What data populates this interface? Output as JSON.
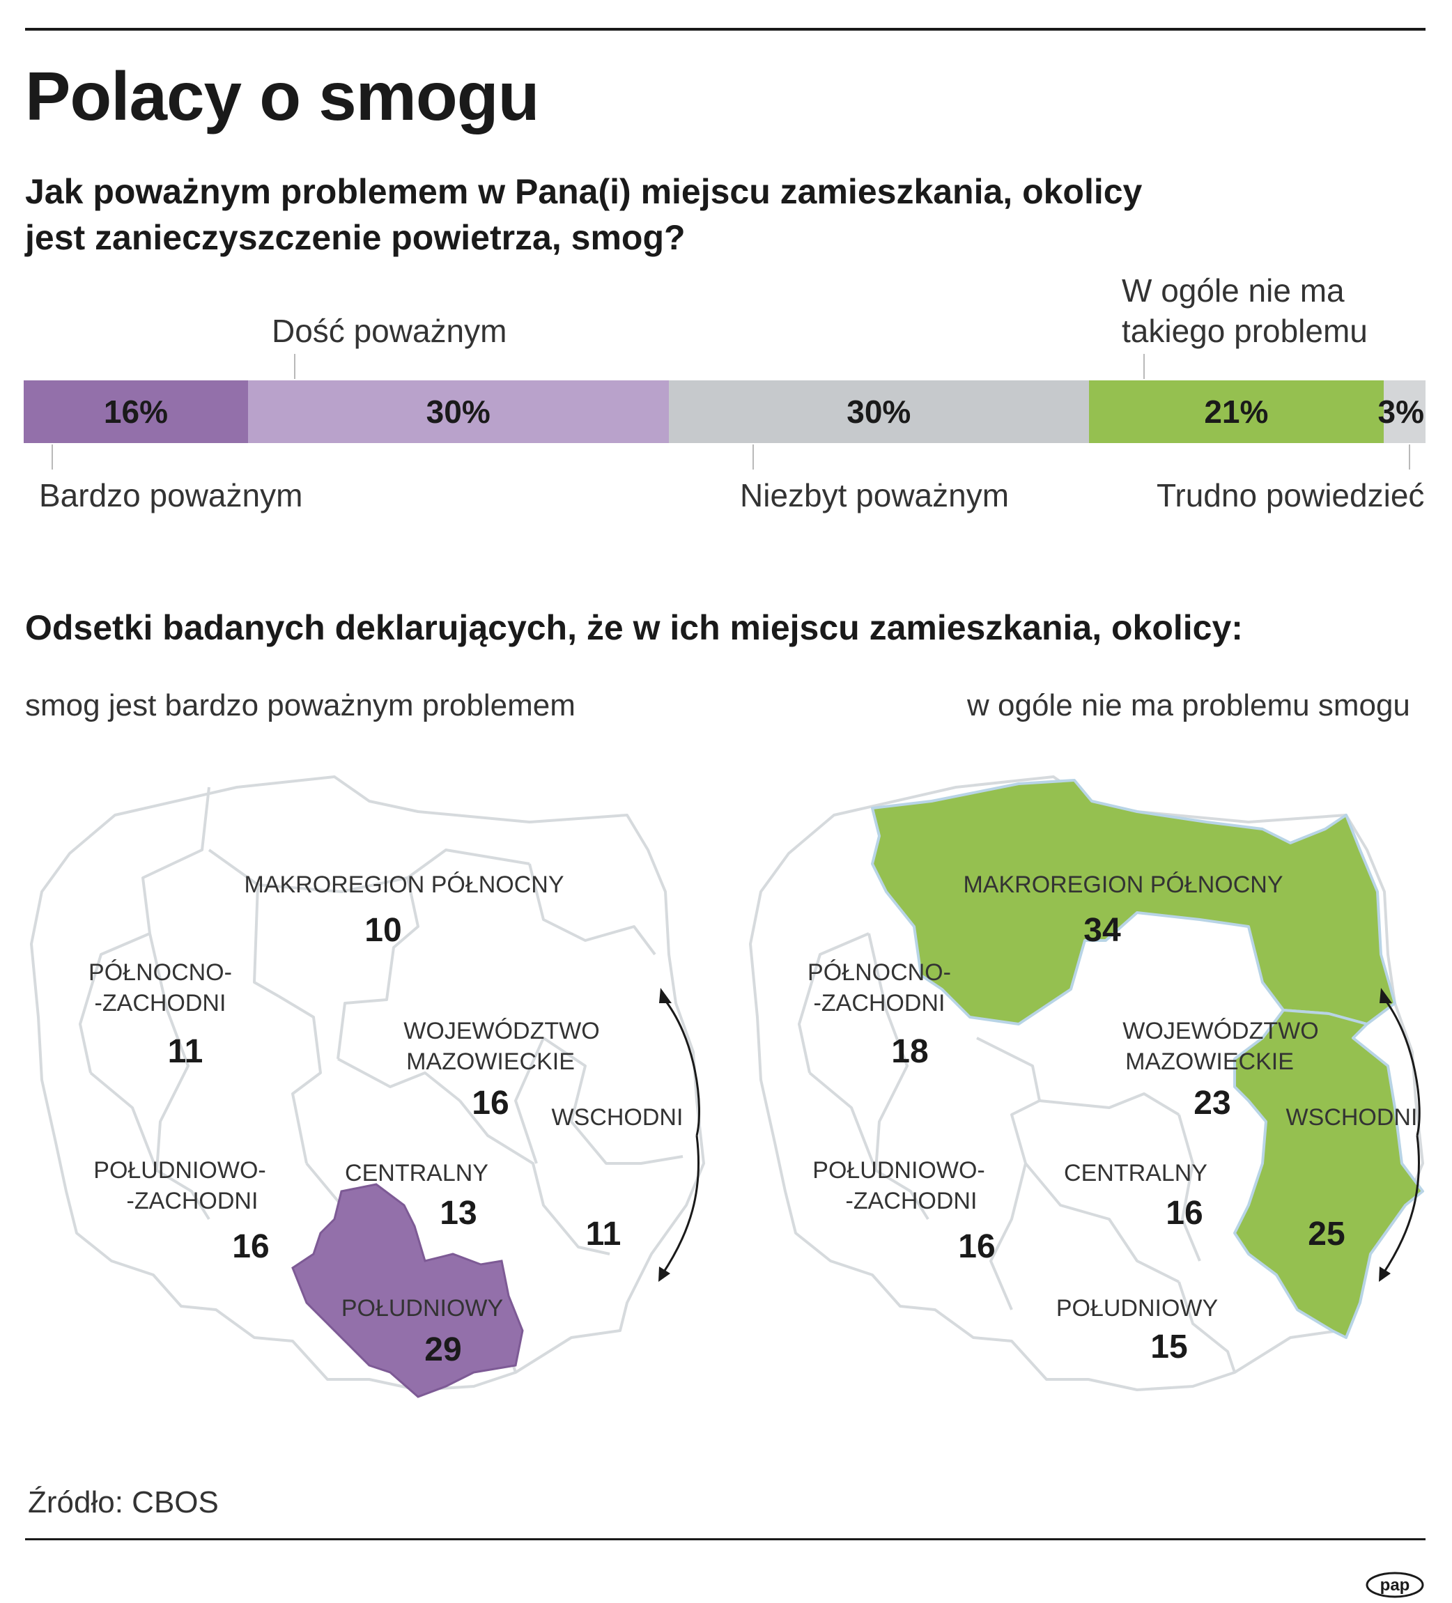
{
  "title": "Polacy o smogu",
  "question": "Jak poważnym problemem w Pana(i) miejscu zamieszkania, okolicy jest zanieczyszczenie powietrza, smog?",
  "question_line1": "Jak poważnym problemem w Pana(i) miejscu zamieszkania, okolicy",
  "question_line2": "jest zanieczyszczenie powietrza, smog?",
  "chart_data": [
    {
      "type": "bar",
      "orientation": "horizontal-stacked",
      "categories": [
        "Bardzo poważnym",
        "Dość poważnym",
        "Niezbyt poważnym",
        "W ogóle nie ma takiego problemu",
        "Trudno powiedzieć"
      ],
      "values": [
        16,
        30,
        30,
        21,
        3
      ],
      "value_labels": [
        "16%",
        "30%",
        "30%",
        "21%",
        "3%"
      ],
      "colors": [
        "#9370aa",
        "#b9a2cb",
        "#c6c9cc",
        "#95c050",
        "#d4d6d8"
      ]
    },
    {
      "type": "table",
      "subtitle": "smog jest bardzo poważnym problemem",
      "regions": [
        "MAKROREGION PÓŁNOCNY",
        "PÓŁNOCNO--ZACHODNI",
        "WOJEWÓDZTWO MAZOWIECKIE",
        "WSCHODNI",
        "POŁUDNIOWO--ZACHODNI",
        "CENTRALNY",
        "POŁUDNIOWY"
      ],
      "values": [
        10,
        11,
        16,
        11,
        16,
        13,
        29
      ],
      "highlight": "POŁUDNIOWY",
      "highlight_color": "#9370aa"
    },
    {
      "type": "table",
      "subtitle": "w ogóle nie ma problemu smogu",
      "regions": [
        "MAKROREGION PÓŁNOCNY",
        "PÓŁNOCNO--ZACHODNI",
        "WOJEWÓDZTWO MAZOWIECKIE",
        "WSCHODNI",
        "POŁUDNIOWO--ZACHODNI",
        "CENTRALNY",
        "POŁUDNIOWY"
      ],
      "values": [
        34,
        18,
        23,
        25,
        16,
        16,
        15
      ],
      "highlight": [
        "MAKROREGION PÓŁNOCNY",
        "WSCHODNI"
      ],
      "highlight_color": "#95c050"
    }
  ],
  "bar_labels": {
    "bardzo": "Bardzo poważnym",
    "dosc": "Dość poważnym",
    "niezbyt": "Niezbyt poważnym",
    "wogole_1": "W ogóle nie ma",
    "wogole_2": "takiego problemu",
    "trudno": "Trudno powiedzieć"
  },
  "section2_title": "Odsetki badanych deklarujących, że w ich miejscu zamieszkania, okolicy:",
  "map_left": {
    "subtitle": "smog jest bardzo poważnym problemem",
    "regions": {
      "polnocny": {
        "name": "MAKROREGION PÓŁNOCNY",
        "value": "10"
      },
      "pn_zach": {
        "name1": "PÓŁNOCNO-",
        "name2": "-ZACHODNI",
        "value": "11"
      },
      "mazow": {
        "name1": "WOJEWÓDZTWO",
        "name2": "MAZOWIECKIE",
        "value": "16"
      },
      "wschodni": {
        "name": "WSCHODNI",
        "value": "11"
      },
      "pd_zach": {
        "name1": "POŁUDNIOWO-",
        "name2": "-ZACHODNI",
        "value": "16"
      },
      "centralny": {
        "name": "CENTRALNY",
        "value": "13"
      },
      "poludniowy": {
        "name": "POŁUDNIOWY",
        "value": "29"
      }
    }
  },
  "map_right": {
    "subtitle": "w ogóle nie ma problemu smogu",
    "regions": {
      "polnocny": {
        "name": "MAKROREGION PÓŁNOCNY",
        "value": "34"
      },
      "pn_zach": {
        "name1": "PÓŁNOCNO-",
        "name2": "-ZACHODNI",
        "value": "18"
      },
      "mazow": {
        "name1": "WOJEWÓDZTWO",
        "name2": "MAZOWIECKIE",
        "value": "23"
      },
      "wschodni": {
        "name": "WSCHODNI",
        "value": "25"
      },
      "pd_zach": {
        "name1": "POŁUDNIOWO-",
        "name2": "-ZACHODNI",
        "value": "16"
      },
      "centralny": {
        "name": "CENTRALNY",
        "value": "16"
      },
      "poludniowy": {
        "name": "POŁUDNIOWY",
        "value": "15"
      }
    }
  },
  "source": "Źródło: CBOS",
  "logo_text": "pap"
}
